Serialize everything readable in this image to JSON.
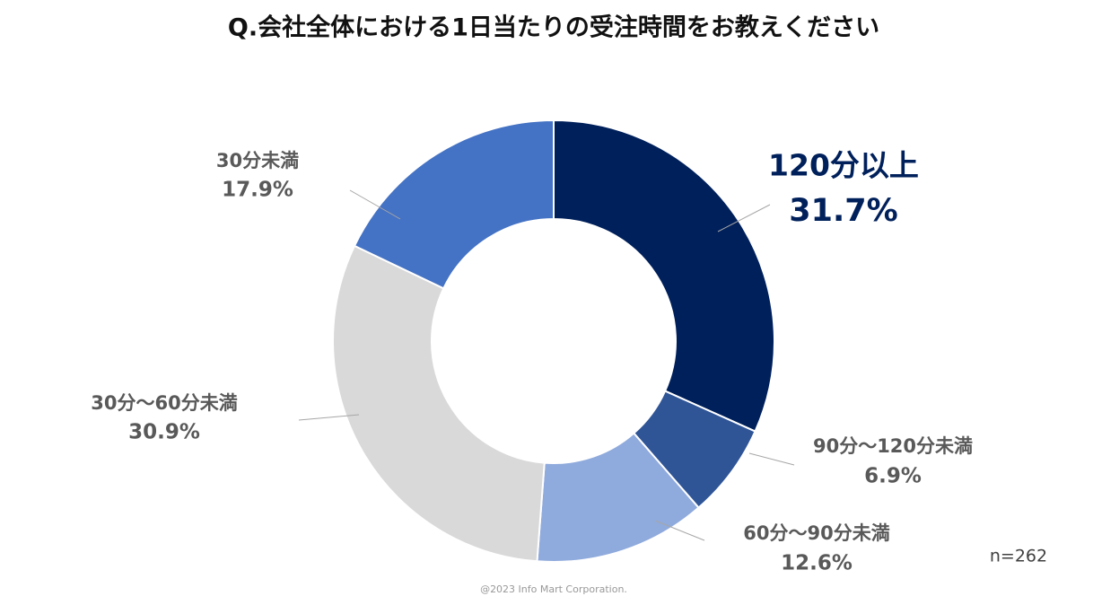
{
  "chart_data": {
    "type": "donut",
    "title": "Q.会社全体における1日当たりの受注時間をお教えください",
    "categories": [
      "120分以上",
      "90分～120分未満",
      "60分～90分未満",
      "30分～60分未満",
      "30分未満"
    ],
    "values": [
      31.7,
      6.9,
      12.6,
      30.9,
      17.9
    ],
    "value_labels": [
      "31.7%",
      "6.9%",
      "12.6%",
      "30.9%",
      "17.9%"
    ],
    "colors": [
      "#00205b",
      "#2f5597",
      "#8faadc",
      "#d9d9d9",
      "#4472c4"
    ],
    "note": "n=262",
    "credit": "@2023 Info Mart Corporation."
  }
}
